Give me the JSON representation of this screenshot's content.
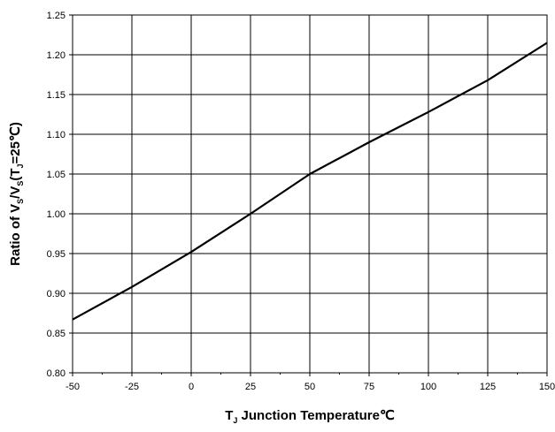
{
  "chart_data": {
    "type": "line",
    "title": "",
    "xlabel": {
      "main": "T",
      "subscript": "J",
      "rest": " Junction Temperature℃"
    },
    "ylabel": {
      "parts": [
        {
          "text": "Ratio of V",
          "sub": false
        },
        {
          "text": "S",
          "sub": true
        },
        {
          "text": "/V",
          "sub": false
        },
        {
          "text": "S",
          "sub": true
        },
        {
          "text": "(T",
          "sub": false
        },
        {
          "text": "J",
          "sub": true
        },
        {
          "text": "=25℃)",
          "sub": false
        }
      ]
    },
    "xlim": [
      -50,
      150
    ],
    "ylim": [
      0.8,
      1.25
    ],
    "x_ticks": [
      -50,
      -25,
      0,
      25,
      50,
      75,
      100,
      125,
      150
    ],
    "x_tick_labels": [
      "-50",
      "-25",
      "0",
      "25",
      "50",
      "75",
      "100",
      "125",
      "150"
    ],
    "y_ticks": [
      0.8,
      0.85,
      0.9,
      0.95,
      1.0,
      1.05,
      1.1,
      1.15,
      1.2,
      1.25
    ],
    "y_tick_labels": [
      "0.80",
      "0.85",
      "0.90",
      "0.95",
      "1.00",
      "1.05",
      "1.10",
      "1.15",
      "1.20",
      "1.25"
    ],
    "grid": true,
    "line_color": "#000000",
    "series": [
      {
        "x": [
          -50,
          -25,
          0,
          25,
          50,
          75,
          100,
          125,
          150
        ],
        "values": [
          0.867,
          0.908,
          0.952,
          1.0,
          1.05,
          1.09,
          1.128,
          1.168,
          1.215
        ]
      }
    ]
  }
}
